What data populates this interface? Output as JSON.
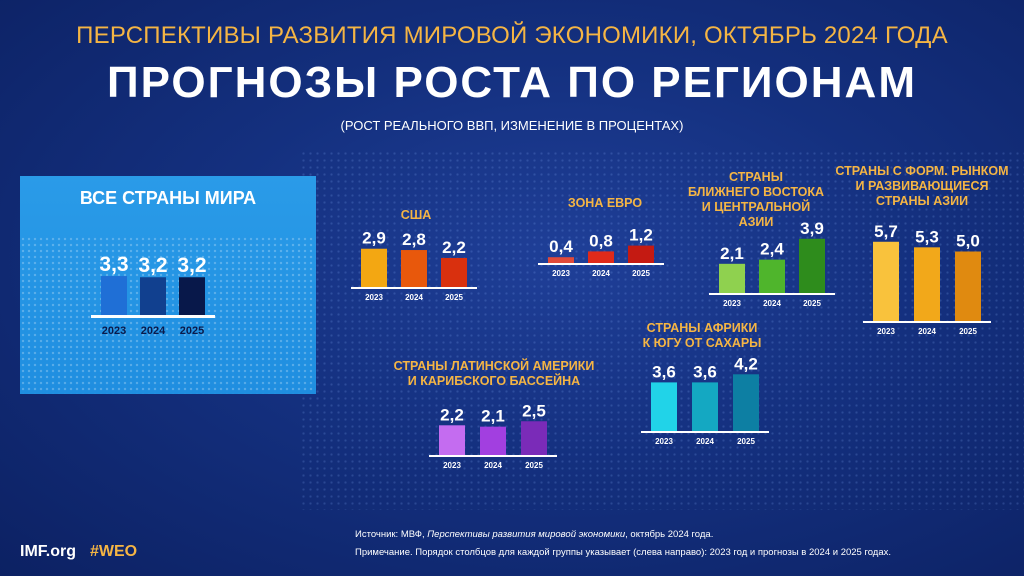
{
  "header": {
    "subtitle": "ПЕРСПЕКТИВЫ РАЗВИТИЯ МИРОВОЙ ЭКОНОМИКИ, ОКТЯБРЬ 2024 ГОДА",
    "title": "ПРОГНОЗЫ РОСТА ПО РЕГИОНАМ",
    "unit": "(РОСТ РЕАЛЬНОГО ВВП, ИЗМЕНЕНИЕ В ПРОЦЕНТАХ)"
  },
  "chart_data": [
    {
      "type": "bar",
      "title": "ВСЕ СТРАНЫ МИРА",
      "categories": [
        "2023",
        "2024",
        "2025"
      ],
      "values": [
        3.3,
        3.2,
        3.2
      ],
      "labels": [
        "3,3",
        "3,2",
        "3,2"
      ],
      "colors": [
        "#1f6fd6",
        "#11408f",
        "#08184a"
      ]
    },
    {
      "type": "bar",
      "title": "США",
      "categories": [
        "2023",
        "2024",
        "2025"
      ],
      "values": [
        2.9,
        2.8,
        2.2
      ],
      "labels": [
        "2,9",
        "2,8",
        "2,2"
      ],
      "colors": [
        "#f3a712",
        "#e8580c",
        "#d9300e"
      ]
    },
    {
      "type": "bar",
      "title": "ЗОНА ЕВРО",
      "categories": [
        "2023",
        "2024",
        "2025"
      ],
      "values": [
        0.4,
        0.8,
        1.2
      ],
      "labels": [
        "0,4",
        "0,8",
        "1,2"
      ],
      "colors": [
        "#e04a3a",
        "#e02a1a",
        "#c41a12"
      ]
    },
    {
      "type": "bar",
      "title": "СТРАНЫ БЛИЖНЕГО ВОСТОКА И ЦЕНТРАЛЬНОЙ АЗИИ",
      "title_lines": [
        "СТРАНЫ",
        "БЛИЖНЕГО ВОСТОКА",
        "И ЦЕНТРАЛЬНОЙ",
        "АЗИИ"
      ],
      "categories": [
        "2023",
        "2024",
        "2025"
      ],
      "values": [
        2.1,
        2.4,
        3.9
      ],
      "labels": [
        "2,1",
        "2,4",
        "3,9"
      ],
      "colors": [
        "#8fd14f",
        "#4fb52c",
        "#2e8c1c"
      ]
    },
    {
      "type": "bar",
      "title": "СТРАНЫ С ФОРМ. РЫНКОМ И РАЗВИВАЮЩИЕСЯ СТРАНЫ АЗИИ",
      "title_lines": [
        "СТРАНЫ С ФОРМ. РЫНКОМ",
        "И РАЗВИВАЮЩИЕСЯ",
        "СТРАНЫ АЗИИ"
      ],
      "categories": [
        "2023",
        "2024",
        "2025"
      ],
      "values": [
        5.7,
        5.3,
        5.0
      ],
      "labels": [
        "5,7",
        "5,3",
        "5,0"
      ],
      "colors": [
        "#f9c23c",
        "#f2a81a",
        "#e08a10"
      ]
    },
    {
      "type": "bar",
      "title": "СТРАНЫ АФРИКИ К ЮГУ ОТ САХАРЫ",
      "title_lines": [
        "СТРАНЫ АФРИКИ",
        "К ЮГУ ОТ САХАРЫ"
      ],
      "categories": [
        "2023",
        "2024",
        "2025"
      ],
      "values": [
        3.6,
        3.6,
        4.2
      ],
      "labels": [
        "3,6",
        "3,6",
        "4,2"
      ],
      "colors": [
        "#21d3e8",
        "#14a8c2",
        "#0d7fa3"
      ]
    },
    {
      "type": "bar",
      "title": "СТРАНЫ ЛАТИНСКОЙ АМЕРИКИ И КАРИБСКОГО БАССЕЙНА",
      "title_lines": [
        "СТРАНЫ ЛАТИНСКОЙ АМЕРИКИ",
        "И КАРИБСКОГО БАССЕЙНА"
      ],
      "categories": [
        "2023",
        "2024",
        "2025"
      ],
      "values": [
        2.2,
        2.1,
        2.5
      ],
      "labels": [
        "2,2",
        "2,1",
        "2,5"
      ],
      "colors": [
        "#c46cf0",
        "#a23fe0",
        "#7a2bb8"
      ]
    }
  ],
  "footer": {
    "site": "IMF.org",
    "hashtag": "#WEO",
    "source_prefix": "Источник: МВФ, ",
    "source_italic": "Перспективы развития мировой экономики",
    "source_suffix": ", октябрь 2024 года.",
    "note": "Примечание. Порядок столбцов для каждой группы указывает (слева направо): 2023 год и прогнозы в 2024 и 2025 годах."
  }
}
